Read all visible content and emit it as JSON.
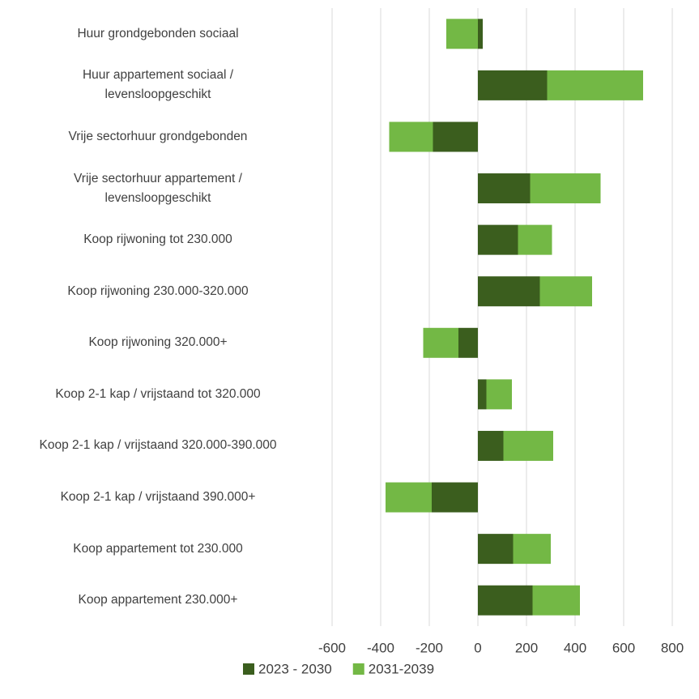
{
  "chart_data": {
    "type": "stacked_barh",
    "categories": [
      "Huur grondgebonden sociaal",
      "Huur appartement sociaal /\nlevensloopgeschikt",
      "Vrije sectorhuur grondgebonden",
      "Vrije sectorhuur appartement /\nlevensloopgeschikt",
      "Koop rijwoning tot 230.000",
      "Koop rijwoning 230.000-320.000",
      "Koop rijwoning 320.000+",
      "Koop 2-1 kap / vrijstaand tot 320.000",
      "Koop 2-1 kap / vrijstaand 320.000-390.000",
      "Koop 2-1 kap / vrijstaand 390.000+",
      "Koop appartement tot 230.000",
      "Koop appartement 230.000+"
    ],
    "series": [
      {
        "name": "2023 - 2030",
        "color": "#3b5e1e",
        "values": [
          20,
          285,
          -185,
          215,
          165,
          255,
          -80,
          35,
          105,
          -190,
          145,
          225
        ]
      },
      {
        "name": "2031-2039",
        "color": "#73b845",
        "values": [
          -130,
          395,
          -180,
          290,
          140,
          215,
          -145,
          105,
          205,
          -190,
          155,
          195
        ]
      }
    ],
    "xlim": [
      -600,
      800
    ],
    "xticks": [
      -600,
      -400,
      -200,
      0,
      200,
      400,
      600,
      800
    ],
    "grid": true,
    "legend": "bottom"
  }
}
